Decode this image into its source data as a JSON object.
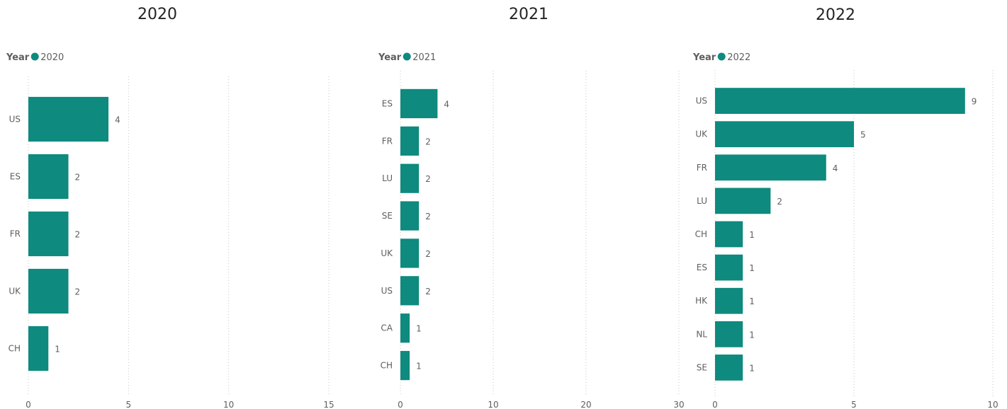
{
  "colors": {
    "bar": "#0e8a7f"
  },
  "chart_data": [
    {
      "type": "bar",
      "orientation": "horizontal",
      "title": "2020",
      "legend": {
        "title": "Year",
        "entry": "2020",
        "placement": "top-left"
      },
      "categories": [
        "US",
        "ES",
        "FR",
        "UK",
        "CH"
      ],
      "values": [
        4,
        2,
        2,
        2,
        1
      ],
      "xlim": [
        0,
        15
      ],
      "xticks": [
        0,
        5,
        10,
        15
      ],
      "grid": true
    },
    {
      "type": "bar",
      "orientation": "horizontal",
      "title": "2021",
      "legend": {
        "title": "Year",
        "entry": "2021",
        "placement": "top-left"
      },
      "categories": [
        "ES",
        "FR",
        "LU",
        "SE",
        "UK",
        "US",
        "CA",
        "CH"
      ],
      "values": [
        4,
        2,
        2,
        2,
        2,
        2,
        1,
        1
      ],
      "xlim": [
        0,
        30
      ],
      "xticks": [
        0,
        10,
        20,
        30
      ],
      "grid": true
    },
    {
      "type": "bar",
      "orientation": "horizontal",
      "title": "2022",
      "legend": {
        "title": "Year",
        "entry": "2022",
        "placement": "top-left"
      },
      "categories": [
        "US",
        "UK",
        "FR",
        "LU",
        "CH",
        "ES",
        "HK",
        "NL",
        "SE"
      ],
      "values": [
        9,
        5,
        4,
        2,
        1,
        1,
        1,
        1,
        1
      ],
      "xlim": [
        0,
        10
      ],
      "xticks": [
        0,
        5,
        10
      ],
      "grid": true
    }
  ]
}
